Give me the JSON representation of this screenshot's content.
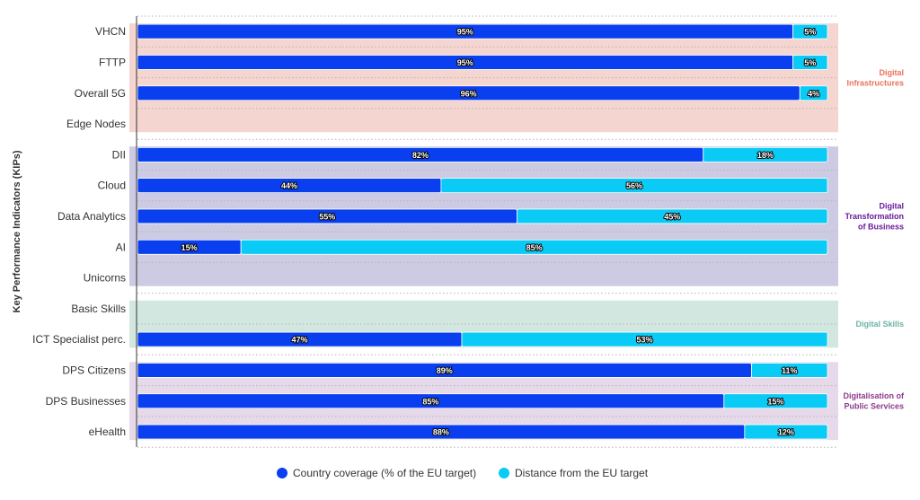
{
  "chart_data": {
    "type": "bar",
    "orientation": "horizontal",
    "stacked": true,
    "ylabel": "Key Performance Indicators (KIPs)",
    "xlim": [
      0,
      100
    ],
    "categories": [
      "VHCN",
      "FTTP",
      "Overall 5G",
      "Edge Nodes",
      "DII",
      "Cloud",
      "Data Analytics",
      "AI",
      "Unicorns",
      "Basic Skills",
      "ICT Specialist perc.",
      "DPS Citizens",
      "DPS Businesses",
      "eHealth"
    ],
    "series": [
      {
        "name": "Country coverage (% of the EU target)",
        "color": "#0a3ff0",
        "values": [
          95,
          95,
          96,
          null,
          82,
          44,
          55,
          15,
          null,
          null,
          47,
          89,
          85,
          88
        ],
        "labels": [
          "95%",
          "95%",
          "96%",
          "",
          "82%",
          "44%",
          "55%",
          "15%",
          "",
          "",
          "47%",
          "89%",
          "85%",
          "88%"
        ]
      },
      {
        "name": "Distance from the EU target",
        "color": "#0acbf5",
        "values": [
          5,
          5,
          4,
          null,
          18,
          56,
          45,
          85,
          null,
          null,
          53,
          11,
          15,
          12
        ],
        "labels": [
          "5%",
          "5%",
          "4%",
          "",
          "18%",
          "56%",
          "45%",
          "85%",
          "",
          "",
          "53%",
          "11%",
          "15%",
          "12%"
        ]
      }
    ],
    "groups": [
      {
        "lines": [
          "Digital",
          "Infrastructures"
        ],
        "start": 0,
        "end": 3,
        "bg": "#f5d5cf",
        "text_color": "#e8735a"
      },
      {
        "lines": [
          "Digital",
          "Transformation",
          "of Business"
        ],
        "start": 4,
        "end": 8,
        "bg": "#cdcbe3",
        "text_color": "#6a1b9a"
      },
      {
        "lines": [
          "Digital Skills"
        ],
        "start": 9,
        "end": 10,
        "bg": "#d3e7e1",
        "text_color": "#6cb3a5"
      },
      {
        "lines": [
          "Digitalisation of",
          "Public Services"
        ],
        "start": 11,
        "end": 13,
        "bg": "#e6d9ea",
        "text_color": "#8e3a8f"
      }
    ],
    "legend_position": "bottom-center",
    "grid": false
  }
}
